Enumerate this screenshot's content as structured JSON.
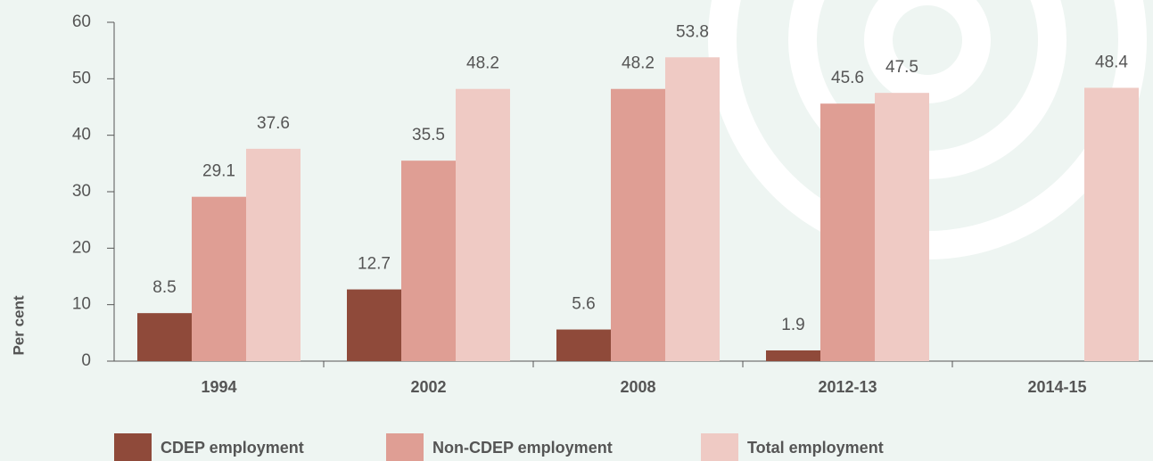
{
  "chart_data": {
    "type": "bar",
    "categories": [
      "1994",
      "2002",
      "2008",
      "2012-13",
      "2014-15"
    ],
    "y_label": "Per cent",
    "series": [
      {
        "name": "CDEP employment",
        "color": "#8f4a3a",
        "values": [
          8.5,
          12.7,
          5.6,
          1.9,
          null
        ]
      },
      {
        "name": "Non-CDEP employment",
        "color": "#df9e94",
        "values": [
          29.1,
          35.5,
          48.2,
          45.6,
          null
        ]
      },
      {
        "name": "Total employment",
        "color": "#efcac4",
        "values": [
          37.6,
          48.2,
          53.8,
          47.5,
          48.4
        ]
      }
    ],
    "ylim": [
      0,
      60
    ],
    "yticks": [
      0,
      10,
      20,
      30,
      40,
      50,
      60
    ],
    "legend": "bottom"
  }
}
